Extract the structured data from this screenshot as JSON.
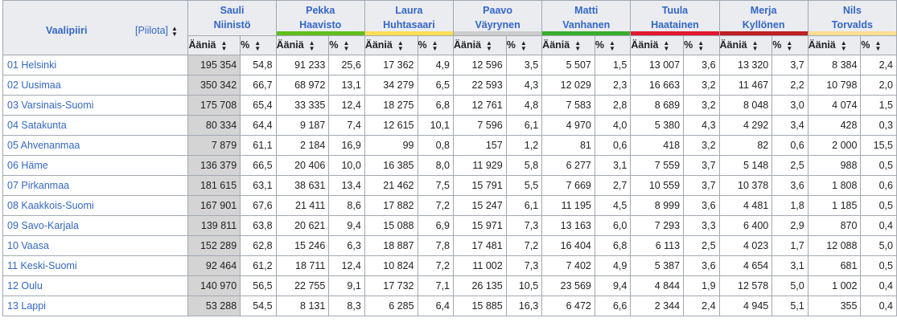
{
  "header": {
    "region_label": "Vaalipiiri",
    "hide_label": "[Piilota]",
    "votes_label": "Ääniä",
    "pct_label": "%"
  },
  "candidates": [
    {
      "line1": "Sauli",
      "line2": "Niinistö",
      "color": "#eaecf0"
    },
    {
      "line1": "Pekka",
      "line2": "Haavisto",
      "color": "#61bf1a"
    },
    {
      "line1": "Laura",
      "line2": "Huhtasaari",
      "color": "#ffde55"
    },
    {
      "line1": "Paavo",
      "line2": "Väyrynen",
      "color": "#cccccc"
    },
    {
      "line1": "Matti",
      "line2": "Vanhanen",
      "color": "#3aad2e"
    },
    {
      "line1": "Tuula",
      "line2": "Haatainen",
      "color": "#e11931"
    },
    {
      "line1": "Merja",
      "line2": "Kyllönen",
      "color": "#bf1e24"
    },
    {
      "line1": "Nils",
      "line2": "Torvalds",
      "color": "#ffdd93"
    }
  ],
  "rows": [
    {
      "region": "01 Helsinki",
      "cells": [
        [
          "195 354",
          "54,8"
        ],
        [
          "91 233",
          "25,6"
        ],
        [
          "17 362",
          "4,9"
        ],
        [
          "12 596",
          "3,5"
        ],
        [
          "5 507",
          "1,5"
        ],
        [
          "13 007",
          "3,6"
        ],
        [
          "13 320",
          "3,7"
        ],
        [
          "8 384",
          "2,4"
        ]
      ]
    },
    {
      "region": "02 Uusimaa",
      "cells": [
        [
          "350 342",
          "66,7"
        ],
        [
          "68 972",
          "13,1"
        ],
        [
          "34 279",
          "6,5"
        ],
        [
          "22 593",
          "4,3"
        ],
        [
          "12 029",
          "2,3"
        ],
        [
          "16 663",
          "3,2"
        ],
        [
          "11 467",
          "2,2"
        ],
        [
          "10 798",
          "2,0"
        ]
      ]
    },
    {
      "region": "03 Varsinais-Suomi",
      "cells": [
        [
          "175 708",
          "65,4"
        ],
        [
          "33 335",
          "12,4"
        ],
        [
          "18 275",
          "6,8"
        ],
        [
          "12 761",
          "4,8"
        ],
        [
          "7 583",
          "2,8"
        ],
        [
          "8 689",
          "3,2"
        ],
        [
          "8 048",
          "3,0"
        ],
        [
          "4 074",
          "1,5"
        ]
      ]
    },
    {
      "region": "04 Satakunta",
      "cells": [
        [
          "80 334",
          "64,4"
        ],
        [
          "9 187",
          "7,4"
        ],
        [
          "12 615",
          "10,1"
        ],
        [
          "7 596",
          "6,1"
        ],
        [
          "4 970",
          "4,0"
        ],
        [
          "5 380",
          "4,3"
        ],
        [
          "4 292",
          "3,4"
        ],
        [
          "428",
          "0,3"
        ]
      ]
    },
    {
      "region": "05 Ahvenanmaa",
      "cells": [
        [
          "7 879",
          "61,1"
        ],
        [
          "2 184",
          "16,9"
        ],
        [
          "99",
          "0,8"
        ],
        [
          "157",
          "1,2"
        ],
        [
          "81",
          "0,6"
        ],
        [
          "418",
          "3,2"
        ],
        [
          "82",
          "0,6"
        ],
        [
          "2 000",
          "15,5"
        ]
      ]
    },
    {
      "region": "06 Häme",
      "cells": [
        [
          "136 379",
          "66,5"
        ],
        [
          "20 406",
          "10,0"
        ],
        [
          "16 385",
          "8,0"
        ],
        [
          "11 929",
          "5,8"
        ],
        [
          "6 277",
          "3,1"
        ],
        [
          "7 559",
          "3,7"
        ],
        [
          "5 148",
          "2,5"
        ],
        [
          "988",
          "0,5"
        ]
      ]
    },
    {
      "region": "07 Pirkanmaa",
      "cells": [
        [
          "181 615",
          "63,1"
        ],
        [
          "38 631",
          "13,4"
        ],
        [
          "21 462",
          "7,5"
        ],
        [
          "15 791",
          "5,5"
        ],
        [
          "7 669",
          "2,7"
        ],
        [
          "10 559",
          "3,7"
        ],
        [
          "10 378",
          "3,6"
        ],
        [
          "1 808",
          "0,6"
        ]
      ]
    },
    {
      "region": "08 Kaakkois-Suomi",
      "cells": [
        [
          "167 901",
          "67,6"
        ],
        [
          "21 411",
          "8,6"
        ],
        [
          "17 882",
          "7,2"
        ],
        [
          "15 247",
          "6,1"
        ],
        [
          "11 195",
          "4,5"
        ],
        [
          "8 999",
          "3,6"
        ],
        [
          "4 481",
          "1,8"
        ],
        [
          "1 185",
          "0,5"
        ]
      ]
    },
    {
      "region": "09 Savo-Karjala",
      "cells": [
        [
          "139 811",
          "63,8"
        ],
        [
          "20 621",
          "9,4"
        ],
        [
          "15 088",
          "6,9"
        ],
        [
          "15 971",
          "7,3"
        ],
        [
          "13 163",
          "6,0"
        ],
        [
          "7 293",
          "3,3"
        ],
        [
          "6 400",
          "2,9"
        ],
        [
          "870",
          "0,4"
        ]
      ]
    },
    {
      "region": "10 Vaasa",
      "cells": [
        [
          "152 289",
          "62,8"
        ],
        [
          "15 246",
          "6,3"
        ],
        [
          "18 887",
          "7,8"
        ],
        [
          "17 481",
          "7,2"
        ],
        [
          "16 404",
          "6,8"
        ],
        [
          "6 113",
          "2,5"
        ],
        [
          "4 023",
          "1,7"
        ],
        [
          "12 088",
          "5,0"
        ]
      ]
    },
    {
      "region": "11 Keski-Suomi",
      "cells": [
        [
          "92 464",
          "61,2"
        ],
        [
          "18 711",
          "12,4"
        ],
        [
          "10 824",
          "7,2"
        ],
        [
          "11 002",
          "7,3"
        ],
        [
          "7 402",
          "4,9"
        ],
        [
          "5 387",
          "3,6"
        ],
        [
          "4 654",
          "3,1"
        ],
        [
          "681",
          "0,5"
        ]
      ]
    },
    {
      "region": "12 Oulu",
      "cells": [
        [
          "140 970",
          "56,5"
        ],
        [
          "22 755",
          "9,1"
        ],
        [
          "17 732",
          "7,1"
        ],
        [
          "26 135",
          "10,5"
        ],
        [
          "23 569",
          "9,4"
        ],
        [
          "4 844",
          "1,9"
        ],
        [
          "12 578",
          "5,0"
        ],
        [
          "1 002",
          "0,4"
        ]
      ]
    },
    {
      "region": "13 Lappi",
      "cells": [
        [
          "53 288",
          "54,5"
        ],
        [
          "8 131",
          "8,3"
        ],
        [
          "6 285",
          "6,4"
        ],
        [
          "15 885",
          "16,3"
        ],
        [
          "6 472",
          "6,6"
        ],
        [
          "2 344",
          "2,4"
        ],
        [
          "4 945",
          "5,1"
        ],
        [
          "355",
          "0,4"
        ]
      ]
    }
  ]
}
